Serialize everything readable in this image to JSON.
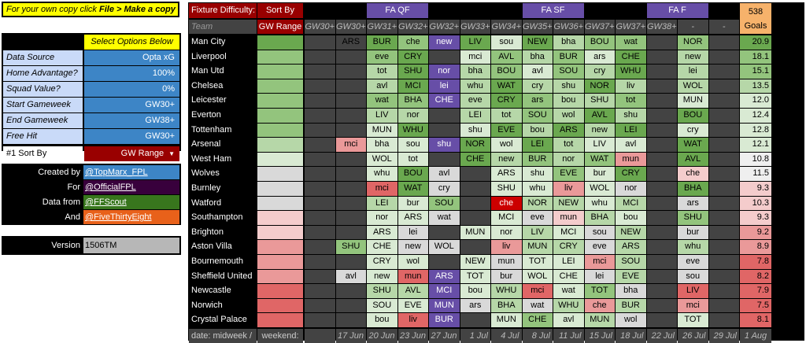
{
  "sidebar": {
    "banner_pre": "For your own copy click ",
    "banner_bold": "File > Make a copy",
    "options_header": "Select Options Below",
    "options": [
      {
        "label": "Data Source",
        "value": "Opta xG"
      },
      {
        "label": "Home Advantage?",
        "value": "100%"
      },
      {
        "label": "Squad Value?",
        "value": "0%"
      },
      {
        "label": "Start Gameweek",
        "value": "GW30+"
      },
      {
        "label": "End Gameweek",
        "value": "GW38+"
      },
      {
        "label": "Free Hit",
        "value": "GW30+"
      }
    ],
    "sort": {
      "label": "#1 Sort By",
      "value": "GW Range"
    },
    "credits": [
      {
        "label": "Created by",
        "value": "@TopMarx_FPL",
        "color": "#3d85c6"
      },
      {
        "label": "For",
        "value": "@OfficialFPL",
        "color": "#38003c"
      },
      {
        "label": "Data from",
        "value": "@FFScout",
        "color": "#38761d"
      },
      {
        "label": "And",
        "value": "@FiveThirtyEight",
        "color": "#e8611a"
      }
    ],
    "version": {
      "label": "Version",
      "value": "1506TM"
    }
  },
  "grid": {
    "title": "Fixture Difficulty:",
    "sort_by_label": "Sort By",
    "team_label": "Team",
    "gw_range_label": "GW Range",
    "cup_labels": [
      {
        "col": 3,
        "text": "FA QF"
      },
      {
        "col": 8,
        "text": "FA SF"
      },
      {
        "col": 12,
        "text": "FA F"
      }
    ],
    "goals_header": [
      "538",
      "Goals"
    ],
    "gw_headers": [
      "GW30+",
      "GW30+",
      "GW31+",
      "GW32+",
      "GW32+",
      "GW33+",
      "GW34+",
      "GW35+",
      "GW36+",
      "GW37+",
      "GW37+",
      "GW38+",
      "-",
      "-"
    ],
    "footer_label": "date: midweek /",
    "footer_weekend": "weekend:",
    "dates": [
      "17 Jun",
      "20 Jun",
      "23 Jun",
      "27 Jun",
      "1 Jul",
      "4 Jul",
      "8 Jul",
      "11 Jul",
      "15 Jul",
      "18 Jul",
      "22 Jul",
      "26 Jul",
      "29 Jul",
      "1 Aug"
    ],
    "colors": {
      "accent": "#990000",
      "cup": "#674ea7",
      "header_bg": "#434343",
      "goals_header": "#f6b26b",
      "scale_1": "#38761d",
      "scale_2": "#6aa84f",
      "scale_3": "#93c47d",
      "scale_4": "#b6d7a8",
      "scale_5": "#d9ead3",
      "scale_6": "#d9d9d9",
      "scale_7": "#f4cccc",
      "scale_8": "#ea9999",
      "scale_9": "#e06666",
      "scale_10": "#cc0000",
      "blank": "#434343",
      "opp_cup": "#674ea7"
    },
    "teams": [
      {
        "name": "Man City",
        "goals": "20.9",
        "fixtures": [
          "",
          "ARS",
          "BUR",
          "che",
          "new",
          "LIV",
          "sou",
          "NEW",
          "bha",
          "BOU",
          "wat",
          "",
          "NOR",
          ""
        ]
      },
      {
        "name": "Liverpool",
        "goals": "18.1",
        "fixtures": [
          "",
          "",
          "eve",
          "CRY",
          "",
          "mci",
          "AVL",
          "bha",
          "BUR",
          "ars",
          "CHE",
          "",
          "new",
          ""
        ]
      },
      {
        "name": "Man Utd",
        "goals": "15.1",
        "fixtures": [
          "",
          "",
          "tot",
          "SHU",
          "nor",
          "bha",
          "BOU",
          "avl",
          "SOU",
          "cry",
          "WHU",
          "",
          "lei",
          ""
        ]
      },
      {
        "name": "Chelsea",
        "goals": "13.5",
        "fixtures": [
          "",
          "",
          "avl",
          "MCI",
          "lei",
          "whu",
          "WAT",
          "cry",
          "shu",
          "NOR",
          "liv",
          "",
          "WOL",
          ""
        ]
      },
      {
        "name": "Leicester",
        "goals": "12.0",
        "fixtures": [
          "",
          "",
          "wat",
          "BHA",
          "CHE",
          "eve",
          "CRY",
          "ars",
          "bou",
          "SHU",
          "tot",
          "",
          "MUN",
          ""
        ]
      },
      {
        "name": "Everton",
        "goals": "12.4",
        "fixtures": [
          "",
          "",
          "LIV",
          "nor",
          "",
          "LEI",
          "tot",
          "SOU",
          "wol",
          "AVL",
          "shu",
          "",
          "BOU",
          ""
        ]
      },
      {
        "name": "Tottenham",
        "goals": "12.8",
        "fixtures": [
          "",
          "",
          "MUN",
          "WHU",
          "",
          "shu",
          "EVE",
          "bou",
          "ARS",
          "new",
          "LEI",
          "",
          "cry",
          ""
        ]
      },
      {
        "name": "Arsenal",
        "goals": "12.1",
        "fixtures": [
          "",
          "mci",
          "bha",
          "sou",
          "shu",
          "NOR",
          "wol",
          "LEI",
          "tot",
          "LIV",
          "avl",
          "",
          "WAT",
          ""
        ]
      },
      {
        "name": "West Ham",
        "goals": "10.8",
        "fixtures": [
          "",
          "",
          "WOL",
          "tot",
          "",
          "CHE",
          "new",
          "BUR",
          "nor",
          "WAT",
          "mun",
          "",
          "AVL",
          ""
        ]
      },
      {
        "name": "Wolves",
        "goals": "11.5",
        "fixtures": [
          "",
          "",
          "whu",
          "BOU",
          "avl",
          "",
          "ARS",
          "shu",
          "EVE",
          "bur",
          "CRY",
          "",
          "che",
          ""
        ]
      },
      {
        "name": "Burnley",
        "goals": "9.3",
        "fixtures": [
          "",
          "",
          "mci",
          "WAT",
          "cry",
          "",
          "SHU",
          "whu",
          "liv",
          "WOL",
          "nor",
          "",
          "BHA",
          ""
        ]
      },
      {
        "name": "Watford",
        "goals": "10.3",
        "fixtures": [
          "",
          "",
          "LEI",
          "bur",
          "SOU",
          "",
          "che",
          "NOR",
          "NEW",
          "whu",
          "MCI",
          "",
          "ars",
          ""
        ]
      },
      {
        "name": "Southampton",
        "goals": "9.3",
        "fixtures": [
          "",
          "",
          "nor",
          "ARS",
          "wat",
          "",
          "MCI",
          "eve",
          "mun",
          "BHA",
          "bou",
          "",
          "SHU",
          ""
        ]
      },
      {
        "name": "Brighton",
        "goals": "9.2",
        "fixtures": [
          "",
          "",
          "ARS",
          "lei",
          "",
          "MUN",
          "nor",
          "LIV",
          "MCI",
          "sou",
          "NEW",
          "",
          "bur",
          ""
        ]
      },
      {
        "name": "Aston Villa",
        "goals": "8.9",
        "fixtures": [
          "",
          "SHU",
          "CHE",
          "new",
          "WOL",
          "",
          "liv",
          "MUN",
          "CRY",
          "eve",
          "ARS",
          "",
          "whu",
          ""
        ]
      },
      {
        "name": "Bournemouth",
        "goals": "7.8",
        "fixtures": [
          "",
          "",
          "CRY",
          "wol",
          "",
          "NEW",
          "mun",
          "TOT",
          "LEI",
          "mci",
          "SOU",
          "",
          "eve",
          ""
        ]
      },
      {
        "name": "Sheffield United",
        "goals": "8.2",
        "fixtures": [
          "",
          "avl",
          "new",
          "mun",
          "ARS",
          "TOT",
          "bur",
          "WOL",
          "CHE",
          "lei",
          "EVE",
          "",
          "sou",
          ""
        ]
      },
      {
        "name": "Newcastle",
        "goals": "7.9",
        "fixtures": [
          "",
          "",
          "SHU",
          "AVL",
          "MCI",
          "bou",
          "WHU",
          "mci",
          "wat",
          "TOT",
          "bha",
          "",
          "LIV",
          ""
        ]
      },
      {
        "name": "Norwich",
        "goals": "7.5",
        "fixtures": [
          "",
          "",
          "SOU",
          "EVE",
          "MUN",
          "ars",
          "BHA",
          "wat",
          "WHU",
          "che",
          "BUR",
          "",
          "mci",
          ""
        ]
      },
      {
        "name": "Crystal Palace",
        "goals": "8.1",
        "fixtures": [
          "",
          "",
          "bou",
          "liv",
          "BUR",
          "",
          "MUN",
          "CHE",
          "avl",
          "MUN",
          "wol",
          "",
          "TOT",
          ""
        ]
      }
    ],
    "shades": [
      [
        0,
        0,
        2,
        3,
        0,
        2,
        5,
        2,
        4,
        3,
        3,
        0,
        3,
        0
      ],
      [
        0,
        0,
        3,
        2,
        0,
        5,
        3,
        4,
        3,
        5,
        2,
        0,
        4,
        0
      ],
      [
        0,
        0,
        4,
        2,
        0,
        4,
        3,
        5,
        3,
        4,
        2,
        0,
        4,
        0
      ],
      [
        0,
        0,
        4,
        2,
        0,
        4,
        2,
        4,
        4,
        2,
        4,
        0,
        4,
        0
      ],
      [
        0,
        0,
        3,
        3,
        0,
        4,
        2,
        3,
        4,
        4,
        3,
        0,
        5,
        0
      ],
      [
        0,
        0,
        4,
        4,
        0,
        4,
        4,
        3,
        4,
        2,
        4,
        0,
        2,
        0
      ],
      [
        0,
        0,
        5,
        2,
        0,
        5,
        2,
        4,
        2,
        4,
        2,
        0,
        5,
        0
      ],
      [
        0,
        8,
        5,
        5,
        0,
        2,
        5,
        2,
        4,
        5,
        5,
        0,
        2,
        0
      ],
      [
        0,
        0,
        5,
        5,
        0,
        2,
        4,
        3,
        4,
        3,
        8,
        0,
        2,
        0
      ],
      [
        0,
        0,
        5,
        2,
        6,
        0,
        5,
        5,
        3,
        5,
        2,
        0,
        7,
        0
      ],
      [
        0,
        0,
        9,
        2,
        6,
        0,
        5,
        5,
        8,
        5,
        6,
        0,
        2,
        0
      ],
      [
        0,
        0,
        4,
        5,
        3,
        0,
        10,
        4,
        4,
        5,
        4,
        0,
        6,
        0
      ],
      [
        0,
        0,
        5,
        5,
        6,
        0,
        5,
        6,
        7,
        4,
        5,
        0,
        3,
        0
      ],
      [
        0,
        0,
        5,
        6,
        0,
        5,
        5,
        4,
        5,
        6,
        4,
        0,
        6,
        0
      ],
      [
        0,
        3,
        5,
        6,
        6,
        0,
        8,
        4,
        4,
        6,
        4,
        0,
        4,
        0
      ],
      [
        0,
        0,
        5,
        5,
        0,
        5,
        6,
        5,
        5,
        8,
        4,
        0,
        6,
        0
      ],
      [
        0,
        6,
        5,
        9,
        0,
        5,
        6,
        5,
        5,
        6,
        4,
        0,
        6,
        0
      ],
      [
        0,
        0,
        4,
        4,
        0,
        5,
        4,
        9,
        5,
        3,
        6,
        0,
        9,
        0
      ],
      [
        0,
        0,
        5,
        5,
        0,
        6,
        4,
        6,
        4,
        8,
        4,
        0,
        8,
        0
      ],
      [
        0,
        0,
        5,
        9,
        3,
        0,
        5,
        3,
        5,
        4,
        6,
        0,
        5,
        0
      ]
    ],
    "cup_cells": [
      [
        0,
        4
      ],
      [
        2,
        4
      ],
      [
        3,
        4
      ],
      [
        4,
        4
      ],
      [
        7,
        4
      ],
      [
        16,
        4
      ],
      [
        17,
        4
      ],
      [
        18,
        4
      ],
      [
        19,
        4
      ]
    ],
    "gw_shades": [
      [
        0,
        3
      ],
      [
        0,
        3
      ],
      [
        0,
        2
      ],
      [
        0,
        2
      ],
      [
        0,
        2
      ],
      [
        0,
        2
      ],
      [
        0,
        2
      ],
      [
        0,
        2
      ],
      [
        0,
        3
      ],
      [
        0,
        3
      ],
      [
        0,
        4
      ],
      [
        0,
        4
      ],
      [
        0,
        4
      ],
      [
        0,
        4
      ],
      [
        0,
        5
      ],
      [
        0,
        5
      ],
      [
        0,
        5
      ],
      [
        0,
        6
      ],
      [
        0,
        6
      ],
      [
        0,
        6
      ]
    ],
    "goals_shades": [
      "#6aa84f",
      "#93c47d",
      "#93c47d",
      "#b6d7a8",
      "#d9ead3",
      "#d9ead3",
      "#d9ead3",
      "#d9ead3",
      "#efefef",
      "#efefef",
      "#f4cccc",
      "#f4cccc",
      "#f4cccc",
      "#ea9999",
      "#ea9999",
      "#e06666",
      "#e06666",
      "#e06666",
      "#e06666",
      "#e06666"
    ]
  }
}
